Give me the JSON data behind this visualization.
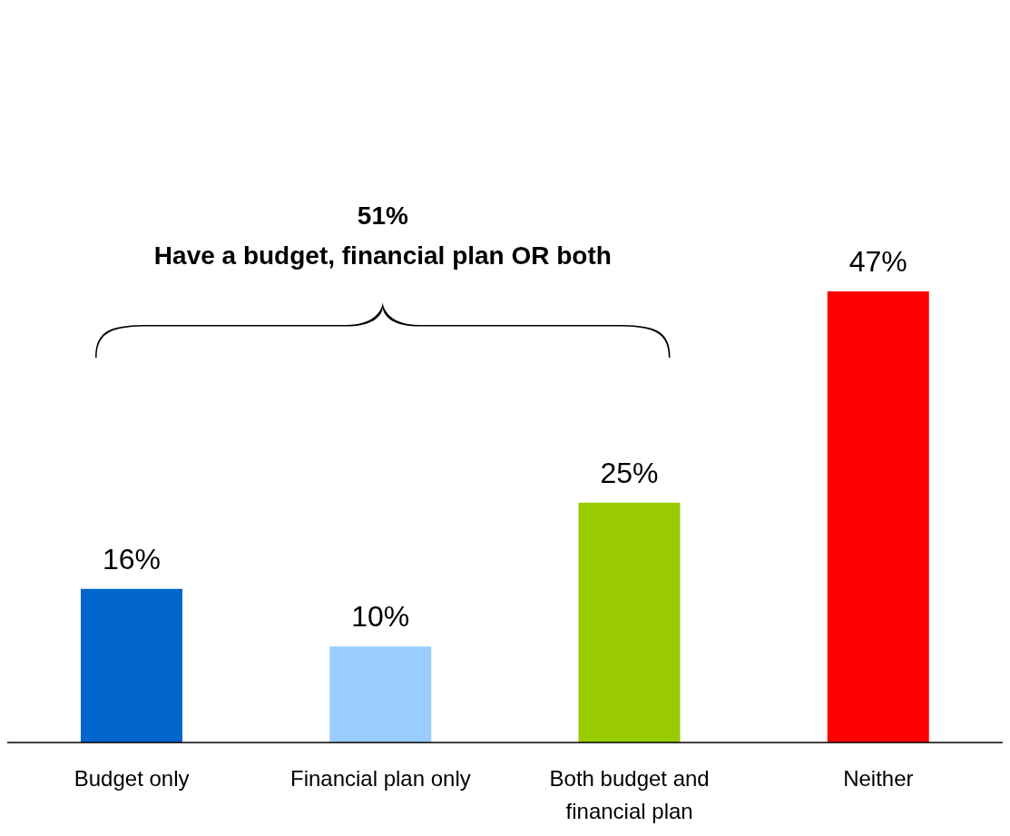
{
  "chart_data": {
    "type": "bar",
    "categories": [
      "Budget only",
      "Financial plan only",
      "Both budget and financial plan",
      "Neither"
    ],
    "values": [
      16,
      10,
      25,
      47
    ],
    "colors": [
      "#0066cc",
      "#99ccff",
      "#99cc00",
      "#ff0000"
    ],
    "value_labels": [
      "16%",
      "10%",
      "25%",
      "47%"
    ],
    "annotations": [
      "51%",
      "Have a budget, financial plan OR both"
    ]
  }
}
